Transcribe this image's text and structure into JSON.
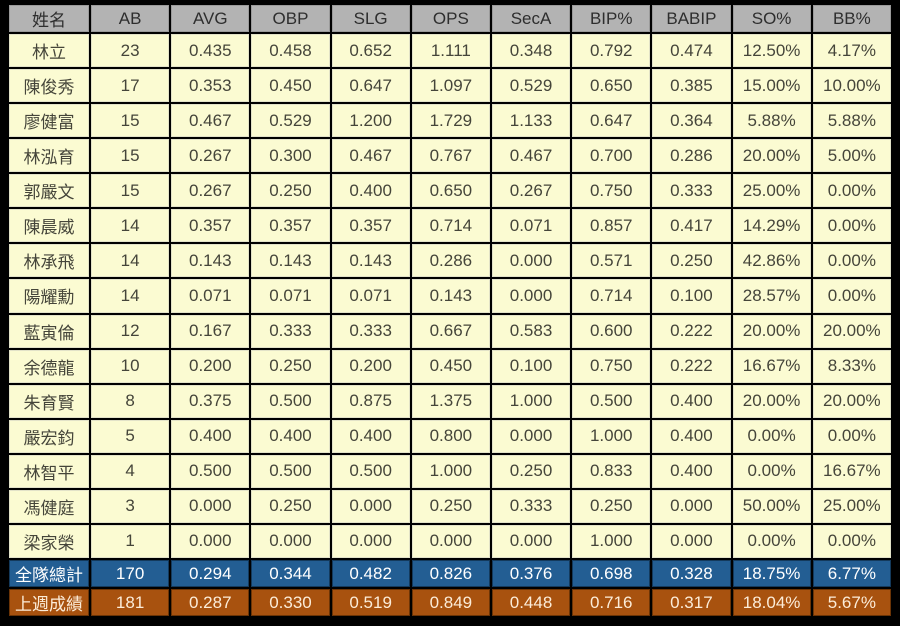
{
  "colors": {
    "page_bg": "#000000",
    "header_bg": "#B3B3B3",
    "row_bg": "#FBFBD2",
    "total_bg": "#235E93",
    "last_week_bg": "#A8520F"
  },
  "chart_data": {
    "type": "table",
    "columns": [
      "姓名",
      "AB",
      "AVG",
      "OBP",
      "SLG",
      "OPS",
      "SecA",
      "BIP%",
      "BABIP",
      "SO%",
      "BB%"
    ],
    "rows": [
      [
        "林立",
        "23",
        "0.435",
        "0.458",
        "0.652",
        "1.111",
        "0.348",
        "0.792",
        "0.474",
        "12.50%",
        "4.17%"
      ],
      [
        "陳俊秀",
        "17",
        "0.353",
        "0.450",
        "0.647",
        "1.097",
        "0.529",
        "0.650",
        "0.385",
        "15.00%",
        "10.00%"
      ],
      [
        "廖健富",
        "15",
        "0.467",
        "0.529",
        "1.200",
        "1.729",
        "1.133",
        "0.647",
        "0.364",
        "5.88%",
        "5.88%"
      ],
      [
        "林泓育",
        "15",
        "0.267",
        "0.300",
        "0.467",
        "0.767",
        "0.467",
        "0.700",
        "0.286",
        "20.00%",
        "5.00%"
      ],
      [
        "郭嚴文",
        "15",
        "0.267",
        "0.250",
        "0.400",
        "0.650",
        "0.267",
        "0.750",
        "0.333",
        "25.00%",
        "0.00%"
      ],
      [
        "陳晨威",
        "14",
        "0.357",
        "0.357",
        "0.357",
        "0.714",
        "0.071",
        "0.857",
        "0.417",
        "14.29%",
        "0.00%"
      ],
      [
        "林承飛",
        "14",
        "0.143",
        "0.143",
        "0.143",
        "0.286",
        "0.000",
        "0.571",
        "0.250",
        "42.86%",
        "0.00%"
      ],
      [
        "陽耀勳",
        "14",
        "0.071",
        "0.071",
        "0.071",
        "0.143",
        "0.000",
        "0.714",
        "0.100",
        "28.57%",
        "0.00%"
      ],
      [
        "藍寅倫",
        "12",
        "0.167",
        "0.333",
        "0.333",
        "0.667",
        "0.583",
        "0.600",
        "0.222",
        "20.00%",
        "20.00%"
      ],
      [
        "余德龍",
        "10",
        "0.200",
        "0.250",
        "0.200",
        "0.450",
        "0.100",
        "0.750",
        "0.222",
        "16.67%",
        "8.33%"
      ],
      [
        "朱育賢",
        "8",
        "0.375",
        "0.500",
        "0.875",
        "1.375",
        "1.000",
        "0.500",
        "0.400",
        "20.00%",
        "20.00%"
      ],
      [
        "嚴宏鈞",
        "5",
        "0.400",
        "0.400",
        "0.400",
        "0.800",
        "0.000",
        "1.000",
        "0.400",
        "0.00%",
        "0.00%"
      ],
      [
        "林智平",
        "4",
        "0.500",
        "0.500",
        "0.500",
        "1.000",
        "0.250",
        "0.833",
        "0.400",
        "0.00%",
        "16.67%"
      ],
      [
        "馮健庭",
        "3",
        "0.000",
        "0.250",
        "0.000",
        "0.250",
        "0.333",
        "0.250",
        "0.000",
        "50.00%",
        "25.00%"
      ],
      [
        "梁家榮",
        "1",
        "0.000",
        "0.000",
        "0.000",
        "0.000",
        "0.000",
        "1.000",
        "0.000",
        "0.00%",
        "0.00%"
      ]
    ],
    "summary_rows": [
      {
        "label": "全隊總計",
        "style": "total",
        "values": [
          "170",
          "0.294",
          "0.344",
          "0.482",
          "0.826",
          "0.376",
          "0.698",
          "0.328",
          "18.75%",
          "6.77%"
        ]
      },
      {
        "label": "上週成績",
        "style": "last_week",
        "values": [
          "181",
          "0.287",
          "0.330",
          "0.519",
          "0.849",
          "0.448",
          "0.716",
          "0.317",
          "18.04%",
          "5.67%"
        ]
      }
    ]
  }
}
